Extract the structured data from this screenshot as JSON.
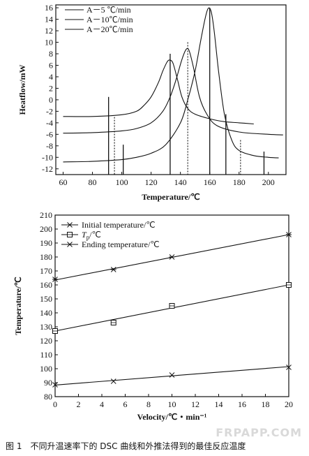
{
  "caption": "图 1　不同升温速率下的 DSC 曲线和外推法得到的最佳反应温度",
  "watermark": "FRPAPP.COM",
  "chart_data": [
    {
      "type": "line",
      "xlabel": "Temperature/℃",
      "ylabel": "Heatflow/mW",
      "xlim": [
        55,
        212
      ],
      "ylim": [
        -13,
        16.5
      ],
      "xticks": [
        60,
        80,
        100,
        120,
        140,
        160,
        180,
        200
      ],
      "yticks": [
        -12,
        -10,
        -8,
        -6,
        -4,
        -2,
        0,
        2,
        4,
        6,
        8,
        10,
        12,
        14,
        16
      ],
      "legend_position": "top-left",
      "series": [
        {
          "name": "A－5 ℃/min",
          "x": [
            60,
            80,
            100,
            110,
            115,
            120,
            125,
            128,
            131,
            133,
            135,
            138,
            141,
            145,
            150,
            160,
            170,
            180,
            190
          ],
          "y": [
            -2.9,
            -2.9,
            -2.6,
            -2.0,
            -1.0,
            0.5,
            3.0,
            5.0,
            6.6,
            6.9,
            6.3,
            3.5,
            0.5,
            -1.5,
            -2.5,
            -3.3,
            -3.8,
            -4.0,
            -4.2
          ]
        },
        {
          "name": "A－10℃/min",
          "x": [
            60,
            80,
            100,
            110,
            120,
            128,
            133,
            137,
            141,
            144,
            146,
            149,
            153,
            158,
            165,
            180,
            200,
            210
          ],
          "y": [
            -5.8,
            -5.7,
            -5.4,
            -5.0,
            -4.0,
            -2.0,
            0.5,
            3.5,
            7.0,
            8.8,
            8.5,
            5.5,
            0.5,
            -2.5,
            -4.5,
            -5.6,
            -6.0,
            -6.1
          ]
        },
        {
          "name": "A－20℃/min",
          "x": [
            60,
            80,
            100,
            110,
            120,
            130,
            140,
            145,
            150,
            154,
            157,
            159,
            161,
            163,
            166,
            170,
            175,
            180,
            190,
            200,
            207
          ],
          "y": [
            -10.8,
            -10.7,
            -10.4,
            -10.0,
            -9.3,
            -7.8,
            -4.0,
            0.0,
            5.0,
            10.5,
            14.3,
            15.9,
            15.3,
            12.0,
            5.0,
            -2.5,
            -7.0,
            -8.8,
            -9.7,
            -10.0,
            -10.1
          ]
        }
      ],
      "annotation_lines": [
        {
          "x": 91,
          "y_top": 0.5,
          "style": "solid"
        },
        {
          "x": 95,
          "y_top": -3.0,
          "style": "dotted"
        },
        {
          "x": 101,
          "y_top": -7.8,
          "style": "solid"
        },
        {
          "x": 133,
          "y_top": 8.0,
          "style": "solid"
        },
        {
          "x": 145,
          "y_top": 10.0,
          "style": "dotted"
        },
        {
          "x": 160,
          "y_top": 16.0,
          "style": "solid"
        },
        {
          "x": 171,
          "y_top": -2.5,
          "style": "solid"
        },
        {
          "x": 181,
          "y_top": -7.0,
          "style": "dotted"
        },
        {
          "x": 197,
          "y_top": -9.0,
          "style": "solid"
        }
      ]
    },
    {
      "type": "line",
      "xlabel": "Velocity/℃・min⁻¹",
      "ylabel": "Temperature/℃",
      "xlim": [
        0,
        20
      ],
      "ylim": [
        80,
        210
      ],
      "xticks": [
        0,
        2,
        4,
        6,
        8,
        10,
        12,
        14,
        16,
        18,
        20
      ],
      "yticks": [
        80,
        90,
        100,
        110,
        120,
        130,
        140,
        150,
        160,
        170,
        180,
        190,
        200,
        210
      ],
      "legend_position": "top-left",
      "series": [
        {
          "name": "Initial temperature/℃",
          "marker": "x",
          "x": [
            0,
            5,
            10,
            20
          ],
          "y": [
            88.5,
            91,
            95.5,
            101
          ],
          "fit": {
            "x": [
              0,
              20
            ],
            "y": [
              88.3,
              101.5
            ]
          }
        },
        {
          "name": "Tp/℃",
          "legend_main": "T",
          "legend_sub": "p",
          "legend_rest": "/℃",
          "marker": "square",
          "x": [
            0,
            5,
            10,
            20
          ],
          "y": [
            127,
            133,
            145,
            160
          ],
          "fit": {
            "x": [
              0,
              20
            ],
            "y": [
              127,
              160
            ]
          }
        },
        {
          "name": "Ending temperature/℃",
          "marker": "star",
          "x": [
            0,
            5,
            10,
            20
          ],
          "y": [
            164,
            171,
            180,
            196
          ],
          "fit": {
            "x": [
              0,
              20
            ],
            "y": [
              163.5,
              196
            ]
          }
        }
      ]
    }
  ]
}
